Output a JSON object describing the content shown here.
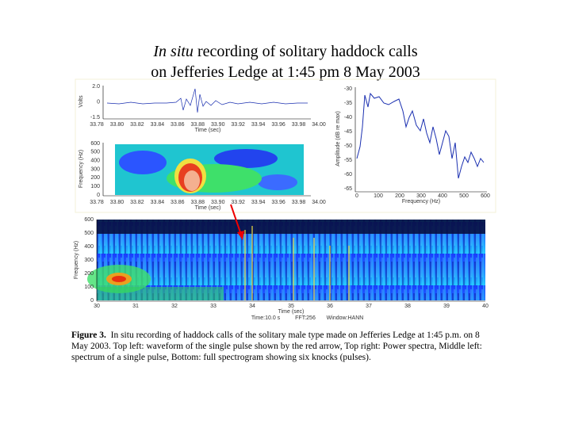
{
  "title": {
    "italic": "In situ",
    "line1": "recording of solitary haddock calls",
    "line2": "on Jefferies Ledge at 1:45 pm 8 May 2003"
  },
  "panels": {
    "waveform": {
      "yticks": [
        "2.0",
        "0",
        "-1.5"
      ],
      "ylabel": "Volts",
      "xticks": [
        "33.78",
        "33.80",
        "33.82",
        "33.84",
        "33.86",
        "33.88",
        "33.90",
        "33.92",
        "33.94",
        "33.96",
        "33.98",
        "34.00"
      ],
      "xlabel": "Time (sec)"
    },
    "pulse_spectrogram": {
      "yticks": [
        "600",
        "500",
        "400",
        "300",
        "200",
        "100",
        "0"
      ],
      "ylabel": "Frequency (Hz)",
      "xticks": [
        "33.78",
        "33.80",
        "33.82",
        "33.84",
        "33.86",
        "33.88",
        "33.90",
        "33.92",
        "33.94",
        "33.96",
        "33.98",
        "34.00"
      ],
      "xlabel": "Time (sec)"
    },
    "power_spectrum": {
      "yticks": [
        "-30",
        "-35",
        "-40",
        "-45",
        "-50",
        "-55",
        "-60",
        "-65"
      ],
      "ylabel": "Amplitude (dB re max)",
      "xticks": [
        "0",
        "100",
        "200",
        "300",
        "400",
        "500",
        "600"
      ],
      "xlabel": "Frequency (Hz)"
    },
    "full_spectrogram": {
      "yticks": [
        "600",
        "500",
        "400",
        "300",
        "200",
        "100",
        "0"
      ],
      "ylabel": "Frequency (Hz)",
      "xticks": [
        "30",
        "31",
        "32",
        "33",
        "34",
        "35",
        "36",
        "37",
        "38",
        "39",
        "40"
      ],
      "xlabel": "Time (sec)",
      "footer": [
        "Time:10.0 s",
        "FFT:256",
        "Window:HANN"
      ]
    }
  },
  "caption": {
    "label": "Figure 3.",
    "text": "In situ recording of haddock calls of the solitary male type made on Jefferies Ledge at 1:45 p.m. on 8 May 2003.  Top left: waveform of the single pulse shown by the red arrow, Top right: Power spectra, Middle left: spectrum of a single pulse, Bottom: full spectrogram showing six knocks (pulses)."
  }
}
